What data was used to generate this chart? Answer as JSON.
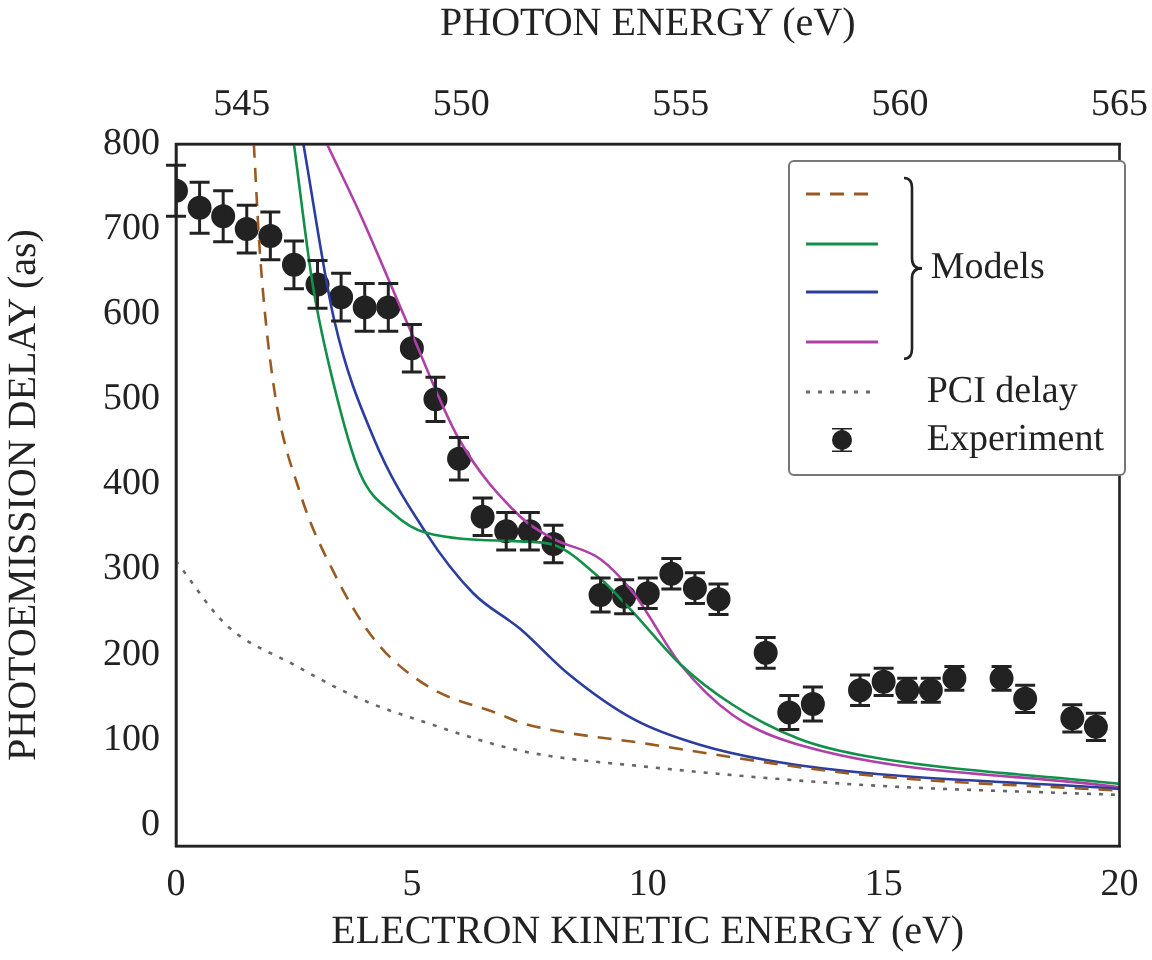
{
  "chart_data": {
    "type": "line",
    "xlabel": "ELECTRON KINETIC ENERGY (eV)",
    "ylabel": "PHOTOEMISSION DELAY (as)",
    "x2label": "PHOTON ENERGY (eV)",
    "xlim": [
      0,
      20
    ],
    "xticks": [
      0,
      5,
      10,
      15,
      20
    ],
    "ylim": [
      -25,
      800
    ],
    "yticks": [
      0,
      100,
      200,
      300,
      400,
      500,
      600,
      700,
      800
    ],
    "x2lim": [
      543.5,
      565
    ],
    "x2ticks": [
      545,
      550,
      555,
      560,
      565
    ],
    "grid": false,
    "legend": "top right",
    "annotations": [
      "Models"
    ],
    "series": [
      {
        "color": "#9a5b22",
        "line_style": "dashed",
        "marker": "none",
        "x": [
          1.65,
          1.78,
          2.07,
          2.63,
          3.35,
          4.2,
          5.3,
          6.9,
          7.3,
          10,
          14.5,
          20
        ],
        "values": [
          800,
          671,
          516,
          390,
          296,
          218,
          164,
          129,
          120,
          95,
          59,
          40
        ]
      },
      {
        "color": "#11904a",
        "line_style": "solid",
        "marker": "none",
        "x": [
          2.5,
          2.9,
          3.35,
          3.9,
          4.6,
          5.3,
          7.3,
          8,
          9,
          9.7,
          10.7,
          11.8,
          13.2,
          14.5,
          20
        ],
        "values": [
          800,
          634,
          516,
          413,
          366,
          343,
          333,
          329,
          289,
          249,
          188,
          141,
          101,
          82,
          48
        ]
      },
      {
        "color": "#2b3d9e",
        "line_style": "solid",
        "marker": "none",
        "x": [
          2.7,
          3.35,
          4.2,
          5.3,
          6.3,
          7.3,
          8.3,
          9.7,
          11.1,
          13.2,
          20
        ],
        "values": [
          800,
          594,
          453,
          343,
          272,
          230,
          178,
          124,
          94,
          70,
          42
        ]
      },
      {
        "color": "#b040a8",
        "line_style": "solid",
        "marker": "none",
        "x": [
          3.2,
          3.9,
          5,
          6,
          7.3,
          8,
          9,
          9.7,
          10.7,
          11.8,
          13.2,
          20
        ],
        "values": [
          800,
          718,
          577,
          453,
          362,
          336,
          312,
          272,
          188,
          129,
          94,
          44
        ]
      },
      {
        "name": "PCI delay",
        "color": "#666666",
        "line_style": "dotted",
        "marker": "none",
        "x": [
          0,
          1.06,
          2.5,
          3.9,
          5.3,
          7.3,
          10,
          14.5,
          20
        ],
        "values": [
          310,
          235,
          188,
          148,
          120,
          87,
          68,
          47,
          35
        ]
      },
      {
        "name": "Experiment",
        "type": "scatter",
        "color": "#222222",
        "marker": "circle",
        "x": [
          0,
          0.5,
          1,
          1.5,
          2,
          2.5,
          3,
          3.5,
          4,
          4.5,
          5,
          5.5,
          6,
          6.5,
          7,
          7.5,
          8,
          9,
          9.5,
          10,
          10.5,
          11,
          11.5,
          12.5,
          13,
          13.5,
          14.5,
          15,
          15.5,
          16,
          16.5,
          17.5,
          18,
          19,
          19.5
        ],
        "values": [
          745,
          725,
          715,
          700,
          692,
          658,
          635,
          620,
          608,
          608,
          560,
          500,
          430,
          362,
          345,
          345,
          330,
          270,
          268,
          272,
          295,
          278,
          265,
          202,
          132,
          142,
          158,
          168,
          158,
          158,
          172,
          172,
          148,
          125,
          115
        ],
        "errors": [
          30,
          30,
          30,
          28,
          28,
          28,
          28,
          28,
          28,
          28,
          28,
          26,
          25,
          22,
          22,
          22,
          22,
          20,
          20,
          18,
          18,
          18,
          18,
          18,
          20,
          20,
          18,
          16,
          14,
          14,
          14,
          14,
          16,
          16,
          16
        ]
      }
    ]
  }
}
